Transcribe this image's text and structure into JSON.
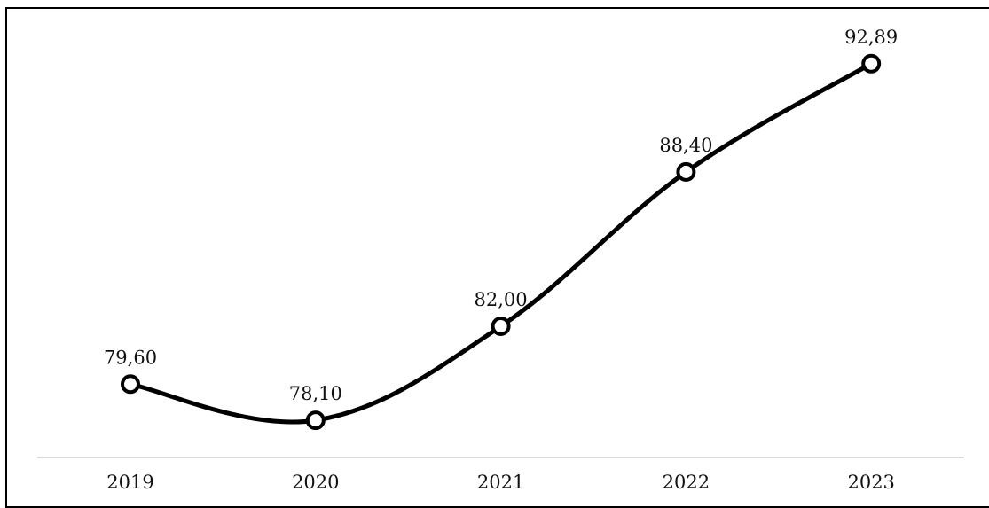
{
  "chart_data": {
    "type": "line",
    "x": [
      "2019",
      "2020",
      "2021",
      "2022",
      "2023"
    ],
    "series": [
      {
        "values": [
          79.6,
          78.1,
          82.0,
          88.4,
          92.89
        ]
      }
    ],
    "data_labels": [
      "79,60",
      "78,10",
      "82,00",
      "88,40",
      "92,89"
    ],
    "title": "",
    "xlabel": "",
    "ylabel": "",
    "ylim": [
      76.56,
      94.5
    ],
    "grid": false,
    "line_color": "#000000",
    "marker_fill": "#ffffff",
    "axis_line_color": "#d9d9d9"
  }
}
